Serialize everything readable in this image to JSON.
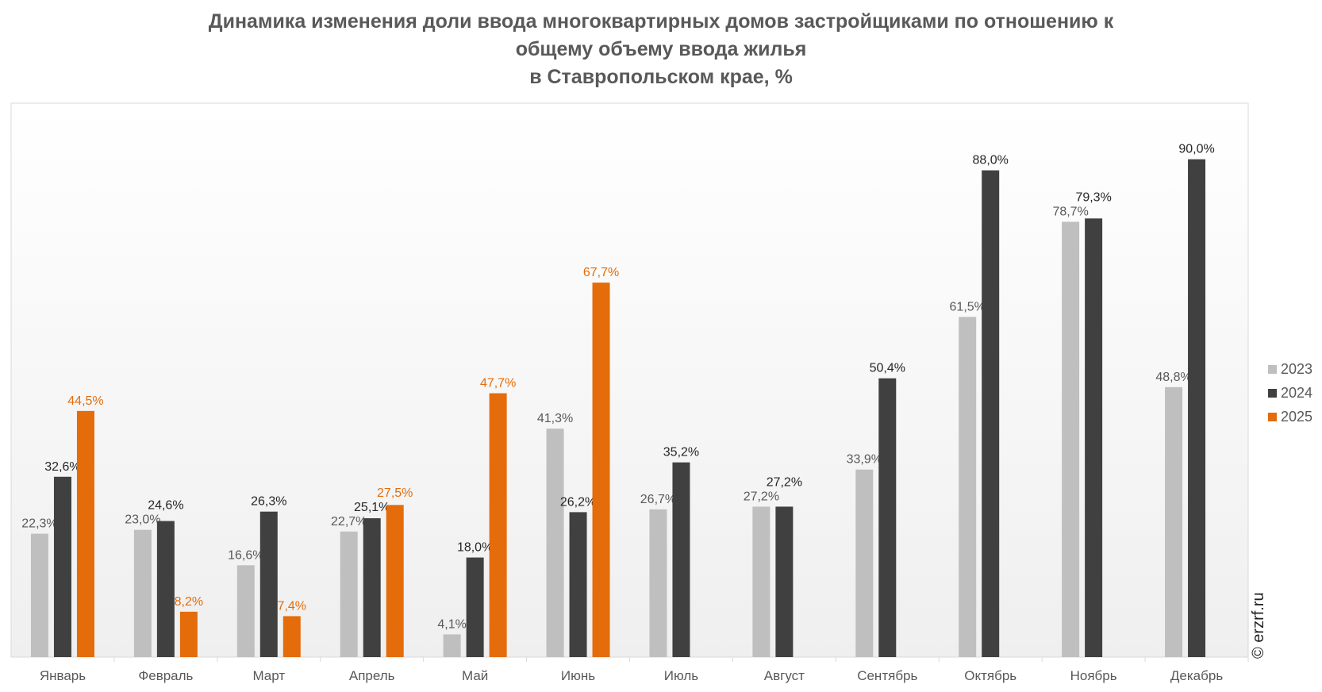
{
  "chart_data": {
    "type": "bar",
    "title": [
      "Динамика изменения доли ввода многоквартирных домов застройщиками по отношению к",
      "общему объему ввода жилья",
      "в Ставропольском крае, %"
    ],
    "categories": [
      "Январь",
      "Февраль",
      "Март",
      "Апрель",
      "Май",
      "Июнь",
      "Июль",
      "Август",
      "Сентябрь",
      "Октябрь",
      "Ноябрь",
      "Декабрь"
    ],
    "series": [
      {
        "name": "2023",
        "color": "#BFBFBF",
        "label_color": "#595959",
        "values": [
          22.3,
          23.0,
          16.6,
          22.7,
          4.1,
          41.3,
          26.7,
          27.2,
          33.9,
          61.5,
          78.7,
          48.8
        ],
        "labels": [
          "22,3%",
          "23,0%",
          "16,6%",
          "22,7%",
          "4,1%",
          "41,3%",
          "26,7%",
          "27,2%",
          "33,9%",
          "61,5%",
          "78,7%",
          "48,8%"
        ]
      },
      {
        "name": "2024",
        "color": "#404040",
        "label_color": "#262626",
        "values": [
          32.6,
          24.6,
          26.3,
          25.1,
          18.0,
          26.2,
          35.2,
          27.2,
          50.4,
          88.0,
          79.3,
          90.0
        ],
        "labels": [
          "32,6%",
          "24,6%",
          "26,3%",
          "25,1%",
          "18,0%",
          "26,2%",
          "35,2%",
          "27,2%",
          "50,4%",
          "88,0%",
          "79,3%",
          "90,0%"
        ]
      },
      {
        "name": "2025",
        "color": "#E46C0A",
        "label_color": "#E46C0A",
        "values": [
          44.5,
          8.2,
          7.4,
          27.5,
          47.7,
          67.7,
          null,
          null,
          null,
          null,
          null,
          null
        ],
        "labels": [
          "44,5%",
          "8,2%",
          "7,4%",
          "27,5%",
          "47,7%",
          "67,7%",
          null,
          null,
          null,
          null,
          null,
          null
        ]
      }
    ],
    "xlabel": "",
    "ylabel": "",
    "ylim": [
      0,
      100
    ],
    "grid": false,
    "legend_position": "right"
  },
  "watermark": "© erzrf.ru"
}
